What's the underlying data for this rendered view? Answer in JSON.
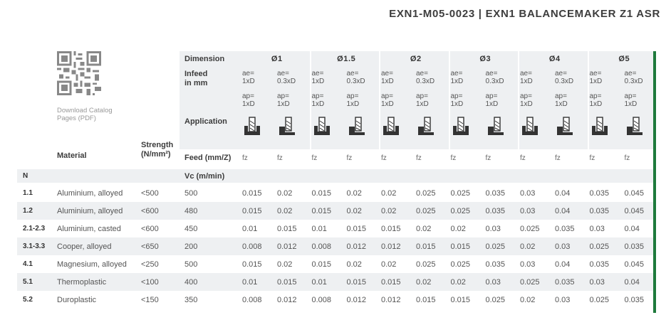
{
  "header": {
    "title": "EXN1-M05-0023  |  EXN1 BALANCEMAKER Z1 ASR"
  },
  "download": {
    "label_line1": "Download Catalog",
    "label_line2": "Pages (PDF)",
    "qr_icon": "qr-code-icon"
  },
  "table": {
    "labels": {
      "dimension": "Dimension",
      "infeed_line1": "Infeed",
      "infeed_line2": "in mm",
      "application": "Application",
      "material": "Material",
      "strength_line1": "Strength",
      "strength_line2": "(N/mm²)",
      "feed": "Feed (mm/Z)",
      "vc": "Vc (m/min)",
      "group_code": "N"
    },
    "dimensions": [
      "Ø1",
      "Ø1.5",
      "Ø2",
      "Ø3",
      "Ø4",
      "Ø5"
    ],
    "subcolumns": [
      {
        "ae_line1": "ae=",
        "ae_line2": "1xD",
        "ap_line1": "ap=",
        "ap_line2": "1xD",
        "fz": "fz",
        "application_icon": "full-slot-milling-icon"
      },
      {
        "ae_line1": "ae=",
        "ae_line2": "0.3xD",
        "ap_line1": "ap=",
        "ap_line2": "1xD",
        "fz": "fz",
        "application_icon": "side-milling-icon"
      }
    ],
    "rows": [
      {
        "code": "1.1",
        "material": "Aluminium, alloyed",
        "strength": "<500",
        "vc": "500",
        "values": [
          "0.015",
          "0.02",
          "0.015",
          "0.02",
          "0.02",
          "0.025",
          "0.025",
          "0.035",
          "0.03",
          "0.04",
          "0.035",
          "0.045"
        ]
      },
      {
        "code": "1.2",
        "material": "Aluminium, alloyed",
        "strength": "<600",
        "vc": "480",
        "values": [
          "0.015",
          "0.02",
          "0.015",
          "0.02",
          "0.02",
          "0.025",
          "0.025",
          "0.035",
          "0.03",
          "0.04",
          "0.035",
          "0.045"
        ]
      },
      {
        "code": "2.1-2.3",
        "material": "Aluminium, casted",
        "strength": "<600",
        "vc": "450",
        "values": [
          "0.01",
          "0.015",
          "0.01",
          "0.015",
          "0.015",
          "0.02",
          "0.02",
          "0.03",
          "0.025",
          "0.035",
          "0.03",
          "0.04"
        ]
      },
      {
        "code": "3.1-3.3",
        "material": "Cooper, alloyed",
        "strength": "<650",
        "vc": "200",
        "values": [
          "0.008",
          "0.012",
          "0.008",
          "0.012",
          "0.012",
          "0.015",
          "0.015",
          "0.025",
          "0.02",
          "0.03",
          "0.025",
          "0.035"
        ]
      },
      {
        "code": "4.1",
        "material": "Magnesium, alloyed",
        "strength": "<250",
        "vc": "500",
        "values": [
          "0.015",
          "0.02",
          "0.015",
          "0.02",
          "0.02",
          "0.025",
          "0.025",
          "0.035",
          "0.03",
          "0.04",
          "0.035",
          "0.045"
        ]
      },
      {
        "code": "5.1",
        "material": "Thermoplastic",
        "strength": "<100",
        "vc": "400",
        "values": [
          "0.01",
          "0.015",
          "0.01",
          "0.015",
          "0.015",
          "0.02",
          "0.02",
          "0.03",
          "0.025",
          "0.035",
          "0.03",
          "0.04"
        ]
      },
      {
        "code": "5.2",
        "material": "Duroplastic",
        "strength": "<150",
        "vc": "350",
        "values": [
          "0.008",
          "0.012",
          "0.008",
          "0.012",
          "0.012",
          "0.015",
          "0.015",
          "0.025",
          "0.02",
          "0.03",
          "0.025",
          "0.035"
        ]
      }
    ],
    "colors": {
      "header_shade": "#eef0f2",
      "row_shade": "#eef0f2",
      "accent_bar": "#1e7a3c"
    }
  }
}
